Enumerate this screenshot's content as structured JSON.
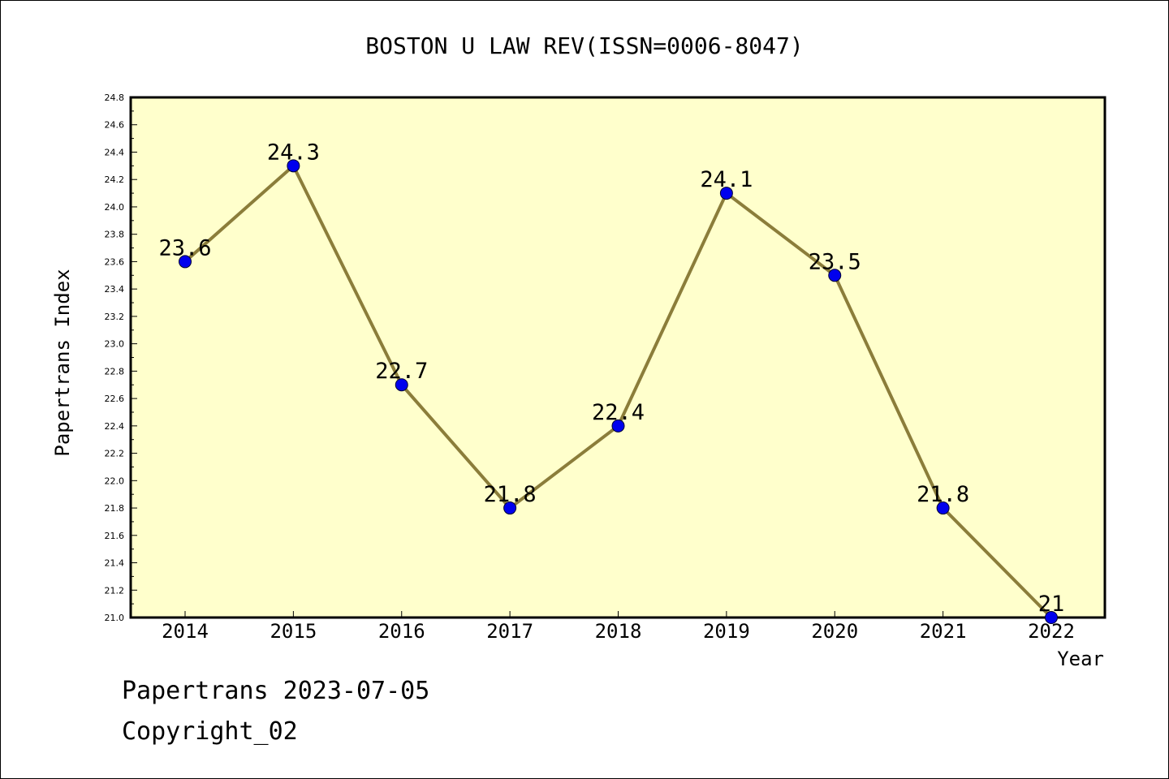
{
  "chart_data": {
    "type": "line",
    "title": "BOSTON U LAW REV(ISSN=0006-8047)",
    "xlabel": "Year",
    "ylabel": "Papertrans Index",
    "categories": [
      "2014",
      "2015",
      "2016",
      "2017",
      "2018",
      "2019",
      "2020",
      "2021",
      "2022"
    ],
    "series": [
      {
        "values": [
          23.6,
          24.3,
          22.7,
          21.8,
          22.4,
          24.1,
          23.5,
          21.8,
          21.0
        ],
        "labels": [
          "23.6",
          "24.3",
          "22.7",
          "21.8",
          "22.4",
          "24.1",
          "23.5",
          "21.8",
          "21"
        ]
      }
    ],
    "ylim": [
      21.0,
      24.8
    ],
    "yticks": [
      "21.0",
      "21.2",
      "21.4",
      "21.6",
      "21.8",
      "22.0",
      "22.2",
      "22.4",
      "22.6",
      "22.8",
      "23.0",
      "23.2",
      "23.4",
      "23.6",
      "23.8",
      "24.0",
      "24.2",
      "24.4",
      "24.6",
      "24.8"
    ],
    "grid": false,
    "legend": "none",
    "colors": {
      "plot_bg": "#ffffcc",
      "line": "#8b7d3a",
      "marker": "#0000ee"
    }
  },
  "footer": {
    "line1": "Papertrans 2023-07-05",
    "line2": "Copyright_02"
  }
}
